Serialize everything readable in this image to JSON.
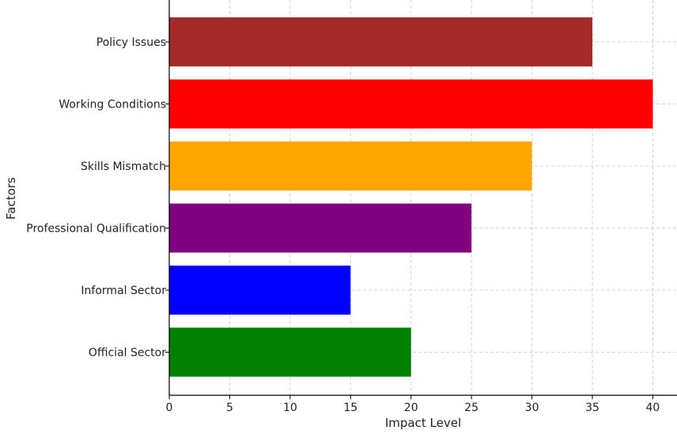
{
  "chart_data": {
    "type": "bar",
    "orientation": "horizontal",
    "title": "",
    "xlabel": "Impact Level",
    "ylabel": "Factors",
    "categories": [
      "Official Sector",
      "Informal Sector",
      "Professional Qualification",
      "Skills Mismatch",
      "Working Conditions",
      "Policy Issues"
    ],
    "values": [
      20,
      15,
      25,
      30,
      40,
      35
    ],
    "colors": [
      "#008000",
      "#0000ff",
      "#800080",
      "#ffa500",
      "#ff0000",
      "#a52a2a"
    ],
    "xlim": [
      0,
      42
    ],
    "xticks": [
      0,
      5,
      10,
      15,
      20,
      25,
      30,
      35,
      40
    ],
    "grid": true,
    "legend": "none"
  }
}
